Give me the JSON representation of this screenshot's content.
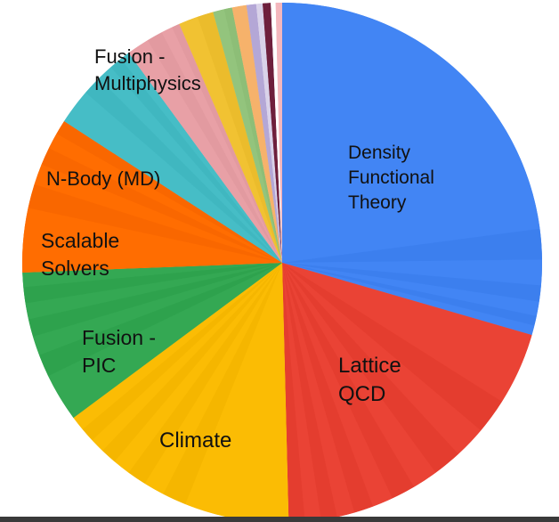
{
  "chart_data": {
    "type": "pie",
    "title": "",
    "slices": [
      {
        "label": "Density Functional Theory",
        "value": 29.6,
        "color": "#4285F4",
        "sub": [
          23,
          1.9,
          1.6,
          1.0,
          0.9,
          0.6,
          0.6
        ]
      },
      {
        "label": "Lattice QCD",
        "value": 20.2,
        "color": "#EA4335",
        "sub": [
          4.5,
          2.2,
          2.0,
          1.8,
          1.6,
          1.5,
          1.3,
          1.2,
          1.1,
          1.0,
          1.0,
          1.0
        ]
      },
      {
        "label": "Climate",
        "value": 15.3,
        "color": "#FBBC04",
        "sub": [
          6.5,
          1.5,
          1.3,
          1.2,
          1.1,
          1.0,
          0.9,
          0.9,
          0.9
        ]
      },
      {
        "label": "Fusion - PIC",
        "value": 9.6,
        "color": "#34A853",
        "sub": [
          3.0,
          1.4,
          1.2,
          1.1,
          1.0,
          1.0,
          0.9
        ]
      },
      {
        "label": "Scalable Solvers",
        "value": 9.8,
        "color": "#FF6D01",
        "sub": [
          4.0,
          1.5,
          1.3,
          1.1,
          1.0,
          0.9
        ]
      },
      {
        "label": "N-Body (MD)",
        "value": 5.8,
        "color": "#46BDC6",
        "sub": [
          2.2,
          1.2,
          1.0,
          0.8,
          0.6
        ]
      },
      {
        "label": "Fusion - Multiphysics",
        "value": 3.6,
        "color": "#E8A0A6",
        "sub": [
          1.4,
          1.0,
          0.7,
          0.5
        ]
      },
      {
        "label": "",
        "value": 2.2,
        "color": "#F1C232",
        "sub": [
          1.2,
          1.0
        ]
      },
      {
        "label": "",
        "value": 1.2,
        "color": "#93C47D",
        "sub": [
          0.7,
          0.5
        ]
      },
      {
        "label": "",
        "value": 0.9,
        "color": "#F6B26B",
        "sub": [
          0.9
        ]
      },
      {
        "label": "",
        "value": 0.6,
        "color": "#B4A7D6",
        "sub": [
          0.6
        ]
      },
      {
        "label": "",
        "value": 0.4,
        "color": "#D9D2E9",
        "sub": [
          0.4
        ]
      },
      {
        "label": "",
        "value": 0.5,
        "color": "#6E1F3C",
        "sub": [
          0.5
        ]
      },
      {
        "label": "",
        "value": 0.3,
        "color": "#FFFFFF",
        "sub": [
          0.3
        ]
      },
      {
        "label": "",
        "value": 0.4,
        "color": "#F4B7BD",
        "sub": [
          0.4
        ]
      }
    ],
    "labels": [
      {
        "lines": [
          "Density",
          "Functional",
          "Theory"
        ],
        "slice": 0
      },
      {
        "lines": [
          "Lattice",
          "QCD"
        ],
        "slice": 1
      },
      {
        "lines": [
          "Climate"
        ],
        "slice": 2
      },
      {
        "lines": [
          "Fusion -",
          "PIC"
        ],
        "slice": 3
      },
      {
        "lines": [
          "Scalable",
          "Solvers"
        ],
        "slice": 4
      },
      {
        "lines": [
          "N-Body (MD)"
        ],
        "slice": 5
      },
      {
        "lines": [
          "Fusion -",
          "Multiphysics"
        ],
        "slice": 6
      }
    ],
    "legend": "none",
    "start_angle": "12 o'clock, clockwise"
  }
}
